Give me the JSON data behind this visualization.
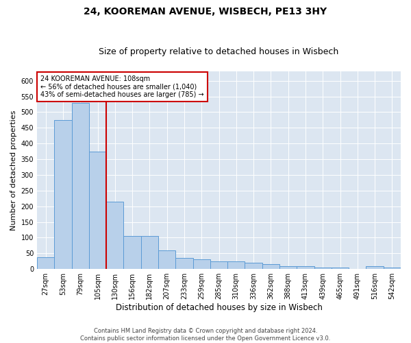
{
  "title1": "24, KOOREMAN AVENUE, WISBECH, PE13 3HY",
  "title2": "Size of property relative to detached houses in Wisbech",
  "xlabel": "Distribution of detached houses by size in Wisbech",
  "ylabel": "Number of detached properties",
  "annotation_line1": "24 KOOREMAN AVENUE: 108sqm",
  "annotation_line2": "← 56% of detached houses are smaller (1,040)",
  "annotation_line3": "43% of semi-detached houses are larger (785) →",
  "footnote1": "Contains HM Land Registry data © Crown copyright and database right 2024.",
  "footnote2": "Contains public sector information licensed under the Open Government Licence v3.0.",
  "bin_labels": [
    "27sqm",
    "53sqm",
    "79sqm",
    "105sqm",
    "130sqm",
    "156sqm",
    "182sqm",
    "207sqm",
    "233sqm",
    "259sqm",
    "285sqm",
    "310sqm",
    "336sqm",
    "362sqm",
    "388sqm",
    "413sqm",
    "439sqm",
    "465sqm",
    "491sqm",
    "516sqm",
    "542sqm"
  ],
  "bar_values": [
    38,
    475,
    530,
    375,
    215,
    105,
    105,
    60,
    35,
    30,
    25,
    25,
    20,
    15,
    10,
    10,
    5,
    5,
    0,
    10,
    5
  ],
  "bar_color": "#b8d0ea",
  "bar_edge_color": "#5b9bd5",
  "vline_x": 3.5,
  "vline_color": "#cc0000",
  "ylim": [
    0,
    630
  ],
  "yticks": [
    0,
    50,
    100,
    150,
    200,
    250,
    300,
    350,
    400,
    450,
    500,
    550,
    600
  ],
  "bg_color": "#dce6f1",
  "title_fontsize": 10,
  "subtitle_fontsize": 9,
  "xlabel_fontsize": 8.5,
  "ylabel_fontsize": 8,
  "tick_fontsize": 7,
  "footnote_fontsize": 6
}
